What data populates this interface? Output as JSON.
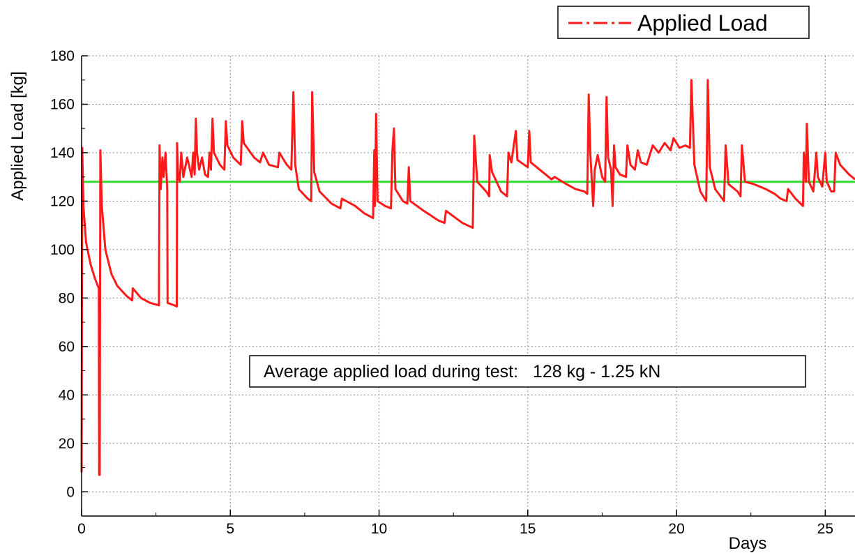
{
  "chart_data": {
    "type": "line",
    "title": "",
    "xlabel": "Days",
    "ylabel": "Applied Load [kg]",
    "xlim": [
      0,
      26
    ],
    "ylim": [
      -10,
      180
    ],
    "xticks": [
      0,
      5,
      10,
      15,
      20,
      25
    ],
    "yticks": [
      0,
      20,
      40,
      60,
      80,
      100,
      120,
      140,
      160,
      180
    ],
    "x_tick_labels": [
      "0",
      "5",
      "10",
      "15",
      "20",
      "25"
    ],
    "y_tick_labels": [
      "0",
      "20",
      "40",
      "60",
      "80",
      "100",
      "120",
      "140",
      "160",
      "180"
    ],
    "grid": true,
    "legend": {
      "position": "top-right",
      "entries": [
        "Applied Load"
      ]
    },
    "annotation": "Average applied load during test:   128 kg - 1.25 kN",
    "average_line": {
      "y": 128,
      "color": "#33dd33"
    },
    "series": [
      {
        "name": "Applied Load",
        "color": "#ff1a1a",
        "points": [
          [
            0.0,
            8
          ],
          [
            0.02,
            142
          ],
          [
            0.06,
            118
          ],
          [
            0.15,
            103
          ],
          [
            0.3,
            94
          ],
          [
            0.45,
            88
          ],
          [
            0.58,
            84
          ],
          [
            0.59,
            7
          ],
          [
            0.61,
            7
          ],
          [
            0.63,
            141
          ],
          [
            0.68,
            118
          ],
          [
            0.8,
            100
          ],
          [
            1.0,
            90
          ],
          [
            1.2,
            85
          ],
          [
            1.5,
            81
          ],
          [
            1.7,
            79
          ],
          [
            1.72,
            84
          ],
          [
            2.0,
            80
          ],
          [
            2.3,
            78
          ],
          [
            2.6,
            77
          ],
          [
            2.62,
            143
          ],
          [
            2.66,
            125
          ],
          [
            2.72,
            138
          ],
          [
            2.76,
            130
          ],
          [
            2.82,
            140
          ],
          [
            2.86,
            130
          ],
          [
            2.88,
            125
          ],
          [
            2.89,
            78
          ],
          [
            3.0,
            77.5
          ],
          [
            3.12,
            77
          ],
          [
            3.2,
            76.5
          ],
          [
            3.21,
            144
          ],
          [
            3.25,
            130
          ],
          [
            3.3,
            128
          ],
          [
            3.35,
            140
          ],
          [
            3.42,
            130
          ],
          [
            3.55,
            138
          ],
          [
            3.7,
            130
          ],
          [
            3.75,
            140
          ],
          [
            3.8,
            131
          ],
          [
            3.84,
            154
          ],
          [
            3.88,
            140
          ],
          [
            3.95,
            133
          ],
          [
            4.05,
            138
          ],
          [
            4.15,
            131
          ],
          [
            4.25,
            130
          ],
          [
            4.3,
            140
          ],
          [
            4.35,
            133
          ],
          [
            4.4,
            154
          ],
          [
            4.45,
            140
          ],
          [
            4.65,
            135
          ],
          [
            4.8,
            133
          ],
          [
            4.85,
            153
          ],
          [
            4.9,
            143
          ],
          [
            5.1,
            138
          ],
          [
            5.35,
            135
          ],
          [
            5.4,
            153
          ],
          [
            5.45,
            144
          ],
          [
            5.8,
            138
          ],
          [
            6.0,
            136
          ],
          [
            6.1,
            140
          ],
          [
            6.3,
            135
          ],
          [
            6.6,
            134
          ],
          [
            6.65,
            140
          ],
          [
            6.9,
            135
          ],
          [
            7.05,
            133
          ],
          [
            7.12,
            165
          ],
          [
            7.18,
            135
          ],
          [
            7.3,
            125
          ],
          [
            7.6,
            121
          ],
          [
            7.72,
            120
          ],
          [
            7.75,
            165
          ],
          [
            7.82,
            132
          ],
          [
            8.0,
            124
          ],
          [
            8.4,
            119
          ],
          [
            8.7,
            117
          ],
          [
            8.75,
            121
          ],
          [
            9.2,
            118
          ],
          [
            9.5,
            115
          ],
          [
            9.8,
            113
          ],
          [
            9.84,
            141
          ],
          [
            9.86,
            118
          ],
          [
            9.9,
            156
          ],
          [
            9.95,
            120
          ],
          [
            10.2,
            118
          ],
          [
            10.4,
            117
          ],
          [
            10.45,
            141
          ],
          [
            10.5,
            150
          ],
          [
            10.55,
            125
          ],
          [
            10.8,
            120
          ],
          [
            10.95,
            119
          ],
          [
            11.0,
            134
          ],
          [
            11.05,
            120
          ],
          [
            11.5,
            116
          ],
          [
            12.0,
            112
          ],
          [
            12.2,
            111
          ],
          [
            12.25,
            116
          ],
          [
            12.8,
            111
          ],
          [
            13.15,
            109
          ],
          [
            13.2,
            147
          ],
          [
            13.3,
            128
          ],
          [
            13.6,
            124
          ],
          [
            13.7,
            122
          ],
          [
            13.72,
            139
          ],
          [
            13.8,
            132
          ],
          [
            14.1,
            124
          ],
          [
            14.3,
            122
          ],
          [
            14.35,
            140
          ],
          [
            14.45,
            136
          ],
          [
            14.6,
            149
          ],
          [
            14.65,
            137
          ],
          [
            15.0,
            134
          ],
          [
            15.05,
            149
          ],
          [
            15.1,
            136
          ],
          [
            15.4,
            133
          ],
          [
            15.8,
            129
          ],
          [
            15.9,
            130
          ],
          [
            16.3,
            127
          ],
          [
            16.6,
            125
          ],
          [
            16.9,
            124
          ],
          [
            17.0,
            123
          ],
          [
            17.05,
            164
          ],
          [
            17.1,
            140
          ],
          [
            17.2,
            118
          ],
          [
            17.25,
            133
          ],
          [
            17.35,
            139
          ],
          [
            17.5,
            130
          ],
          [
            17.6,
            128
          ],
          [
            17.65,
            163
          ],
          [
            17.7,
            138
          ],
          [
            17.8,
            133
          ],
          [
            17.85,
            118
          ],
          [
            17.9,
            143
          ],
          [
            17.95,
            134
          ],
          [
            18.1,
            131
          ],
          [
            18.3,
            130
          ],
          [
            18.35,
            143
          ],
          [
            18.45,
            135
          ],
          [
            18.6,
            133
          ],
          [
            18.7,
            141
          ],
          [
            18.8,
            136
          ],
          [
            19.0,
            135
          ],
          [
            19.2,
            143
          ],
          [
            19.4,
            140
          ],
          [
            19.6,
            144
          ],
          [
            19.8,
            141
          ],
          [
            19.9,
            146
          ],
          [
            20.1,
            142
          ],
          [
            20.3,
            143
          ],
          [
            20.45,
            142
          ],
          [
            20.5,
            170
          ],
          [
            20.6,
            135
          ],
          [
            20.8,
            124
          ],
          [
            21.0,
            120
          ],
          [
            21.05,
            170
          ],
          [
            21.12,
            134
          ],
          [
            21.3,
            125
          ],
          [
            21.6,
            120
          ],
          [
            21.65,
            143
          ],
          [
            21.75,
            127
          ],
          [
            22.05,
            124
          ],
          [
            22.15,
            122
          ],
          [
            22.2,
            143
          ],
          [
            22.3,
            128
          ],
          [
            22.6,
            127
          ],
          [
            23.0,
            125
          ],
          [
            23.3,
            123
          ],
          [
            23.5,
            121
          ],
          [
            23.7,
            120
          ],
          [
            23.75,
            125
          ],
          [
            24.0,
            121
          ],
          [
            24.25,
            118
          ],
          [
            24.28,
            140
          ],
          [
            24.35,
            128
          ],
          [
            24.38,
            152
          ],
          [
            24.45,
            128
          ],
          [
            24.6,
            124
          ],
          [
            24.7,
            140
          ],
          [
            24.75,
            130
          ],
          [
            24.9,
            126
          ],
          [
            25.0,
            140
          ],
          [
            25.05,
            128
          ],
          [
            25.2,
            124
          ],
          [
            25.3,
            124
          ],
          [
            25.35,
            140
          ],
          [
            25.5,
            135
          ],
          [
            25.8,
            131
          ],
          [
            26.0,
            129
          ]
        ]
      }
    ]
  }
}
